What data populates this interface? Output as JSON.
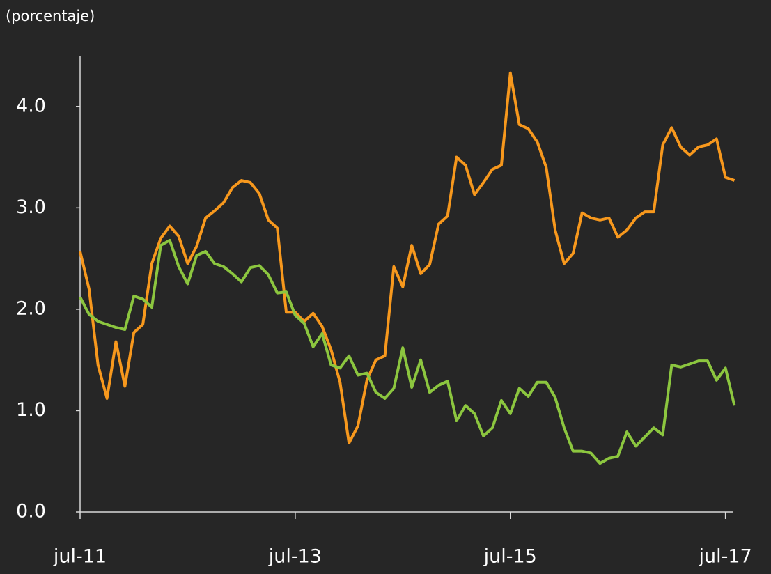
{
  "chart_data": {
    "type": "line",
    "subtitle": "(porcentaje)",
    "categories": [
      "jul-11",
      null,
      null,
      null,
      null,
      null,
      null,
      null,
      null,
      null,
      null,
      null,
      null,
      null,
      null,
      null,
      null,
      null,
      null,
      null,
      null,
      null,
      null,
      null,
      "jul-13",
      null,
      null,
      null,
      null,
      null,
      null,
      null,
      null,
      null,
      null,
      null,
      null,
      null,
      null,
      null,
      null,
      null,
      null,
      null,
      null,
      null,
      null,
      null,
      "jul-15",
      null,
      null,
      null,
      null,
      null,
      null,
      null,
      null,
      null,
      null,
      null,
      null,
      null,
      null,
      null,
      null,
      null,
      null,
      null,
      null,
      null,
      null,
      null,
      "jul-17",
      null
    ],
    "series": [
      {
        "color": "#f7981d",
        "values": [
          2.57,
          2.2,
          1.45,
          1.12,
          1.68,
          1.24,
          1.77,
          1.85,
          2.45,
          2.7,
          2.82,
          2.72,
          2.45,
          2.62,
          2.9,
          2.97,
          3.05,
          3.2,
          3.27,
          3.25,
          3.14,
          2.88,
          2.8,
          1.97,
          1.97,
          1.88,
          1.96,
          1.83,
          1.6,
          1.28,
          0.68,
          0.85,
          1.3,
          1.5,
          1.54,
          2.42,
          2.22,
          2.63,
          2.35,
          2.44,
          2.84,
          2.92,
          3.5,
          3.42,
          3.13,
          3.25,
          3.38,
          3.42,
          4.33,
          3.82,
          3.78,
          3.65,
          3.4,
          2.78,
          2.45,
          2.55,
          2.95,
          2.9,
          2.88,
          2.9,
          2.71,
          2.78,
          2.9,
          2.96,
          2.96,
          3.62,
          3.79,
          3.6,
          3.52,
          3.6,
          3.62,
          3.68,
          3.3,
          3.27
        ]
      },
      {
        "color": "#8cc63f",
        "values": [
          2.12,
          1.95,
          1.88,
          1.85,
          1.82,
          1.8,
          2.13,
          2.1,
          2.02,
          2.63,
          2.68,
          2.42,
          2.25,
          2.53,
          2.57,
          2.45,
          2.42,
          2.35,
          2.27,
          2.41,
          2.43,
          2.34,
          2.16,
          2.17,
          1.94,
          1.86,
          1.63,
          1.76,
          1.45,
          1.42,
          1.54,
          1.35,
          1.37,
          1.18,
          1.12,
          1.22,
          1.62,
          1.23,
          1.5,
          1.18,
          1.25,
          1.29,
          0.9,
          1.05,
          0.97,
          0.75,
          0.83,
          1.1,
          0.97,
          1.22,
          1.14,
          1.28,
          1.28,
          1.13,
          0.83,
          0.6,
          0.6,
          0.58,
          0.48,
          0.53,
          0.55,
          0.79,
          0.65,
          0.74,
          0.83,
          0.76,
          1.45,
          1.43,
          1.46,
          1.49,
          1.49,
          1.3,
          1.42,
          1.05
        ]
      }
    ],
    "ylim": [
      0,
      4.5
    ],
    "yticks": [
      {
        "value": 0,
        "label": "0.0"
      },
      {
        "value": 1,
        "label": "1.0"
      },
      {
        "value": 2,
        "label": "2.0"
      },
      {
        "value": 3,
        "label": "3.0"
      },
      {
        "value": 4,
        "label": "4.0"
      }
    ],
    "grid": false
  }
}
